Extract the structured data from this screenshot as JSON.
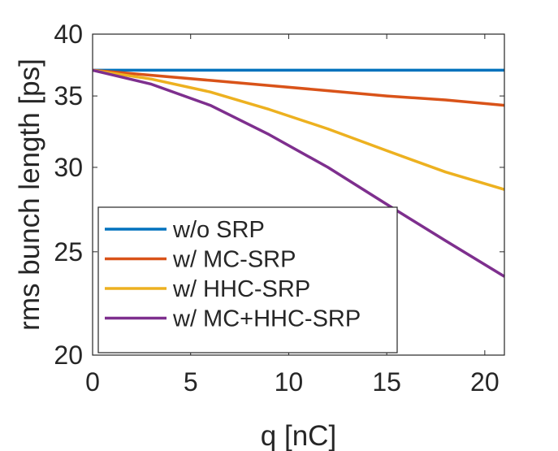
{
  "chart_data": {
    "type": "line",
    "title": "",
    "xlabel": "q [nC]",
    "ylabel": "rms bunch length [ps]",
    "xlim": [
      0,
      21
    ],
    "ylim": [
      20,
      40
    ],
    "yscale": "log",
    "x_ticks": [
      0,
      5,
      10,
      15,
      20
    ],
    "y_ticks": [
      20,
      25,
      30,
      35,
      40
    ],
    "legend_position": "bottom-left",
    "colors": {
      "w/o SRP": "#0072BD",
      "w/ MC-SRP": "#D95319",
      "w/ HHC-SRP": "#EDB120",
      "w/ MC+HHC-SRP": "#7E2F8E"
    },
    "x": [
      0,
      3,
      6,
      9,
      12,
      15,
      18,
      21
    ],
    "series": [
      {
        "name": "w/o SRP",
        "values": [
          37.0,
          37.0,
          37.0,
          37.0,
          37.0,
          37.0,
          37.0,
          37.0
        ]
      },
      {
        "name": "w/ MC-SRP",
        "values": [
          37.0,
          36.6,
          36.2,
          35.8,
          35.4,
          35.0,
          34.7,
          34.3
        ]
      },
      {
        "name": "w/ HHC-SRP",
        "values": [
          37.0,
          36.3,
          35.3,
          34.0,
          32.6,
          31.1,
          29.7,
          28.6
        ]
      },
      {
        "name": "w/ MC+HHC-SRP",
        "values": [
          37.0,
          35.9,
          34.3,
          32.2,
          30.0,
          27.7,
          25.6,
          23.7
        ]
      }
    ]
  }
}
